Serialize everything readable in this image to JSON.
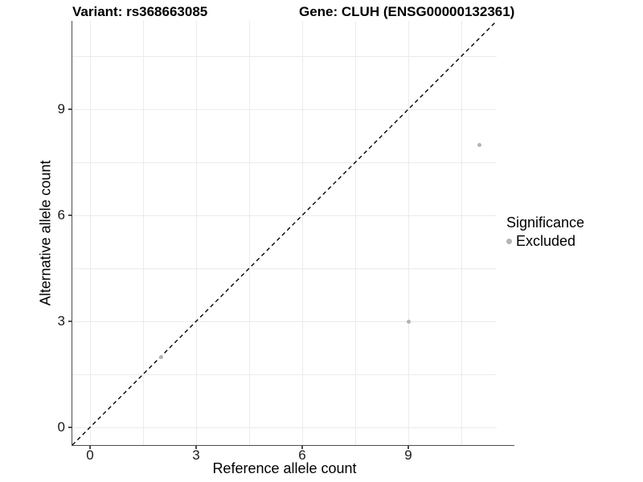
{
  "title": {
    "variant": "Variant: rs368663085",
    "gene": "Gene: CLUH (ENSG00000132361)"
  },
  "axes": {
    "x": {
      "label": "Reference allele count",
      "major_ticks": [
        0,
        3,
        6,
        9
      ],
      "minor_ticks": [
        1.5,
        4.5,
        7.5,
        10.5
      ]
    },
    "y": {
      "label": "Alternative allele count",
      "major_ticks": [
        0,
        3,
        6,
        9
      ],
      "minor_ticks": [
        1.5,
        4.5,
        7.5,
        10.5
      ]
    }
  },
  "legend": {
    "title": "Significance",
    "items": [
      {
        "label": "Excluded",
        "color": "#b4b4b4"
      }
    ]
  },
  "chart_data": {
    "type": "scatter",
    "title": "Variant: rs368663085 | Gene: CLUH (ENSG00000132361)",
    "xlabel": "Reference allele count",
    "ylabel": "Alternative allele count",
    "xlim": [
      -0.5,
      11.5
    ],
    "ylim": [
      -0.5,
      11.5
    ],
    "x_major_ticks": [
      0,
      3,
      6,
      9
    ],
    "y_major_ticks": [
      0,
      3,
      6,
      9
    ],
    "grid": "major and minor gridlines, light gray on white",
    "legend_position": "right-center",
    "series": [
      {
        "name": "Excluded",
        "color": "#b4b4b4",
        "points": [
          {
            "x": 2,
            "y": 2
          },
          {
            "x": 9,
            "y": 3
          },
          {
            "x": 11,
            "y": 8
          }
        ]
      }
    ],
    "reference_line": {
      "type": "identity y=x",
      "style": "dashed",
      "color": "#000000"
    }
  },
  "colors": {
    "background": "#ffffff",
    "gridline": "#ebebeb",
    "axis_line": "#4d4d4d",
    "tick_text": "#1a1a1a",
    "point": "#b4b4b4"
  }
}
